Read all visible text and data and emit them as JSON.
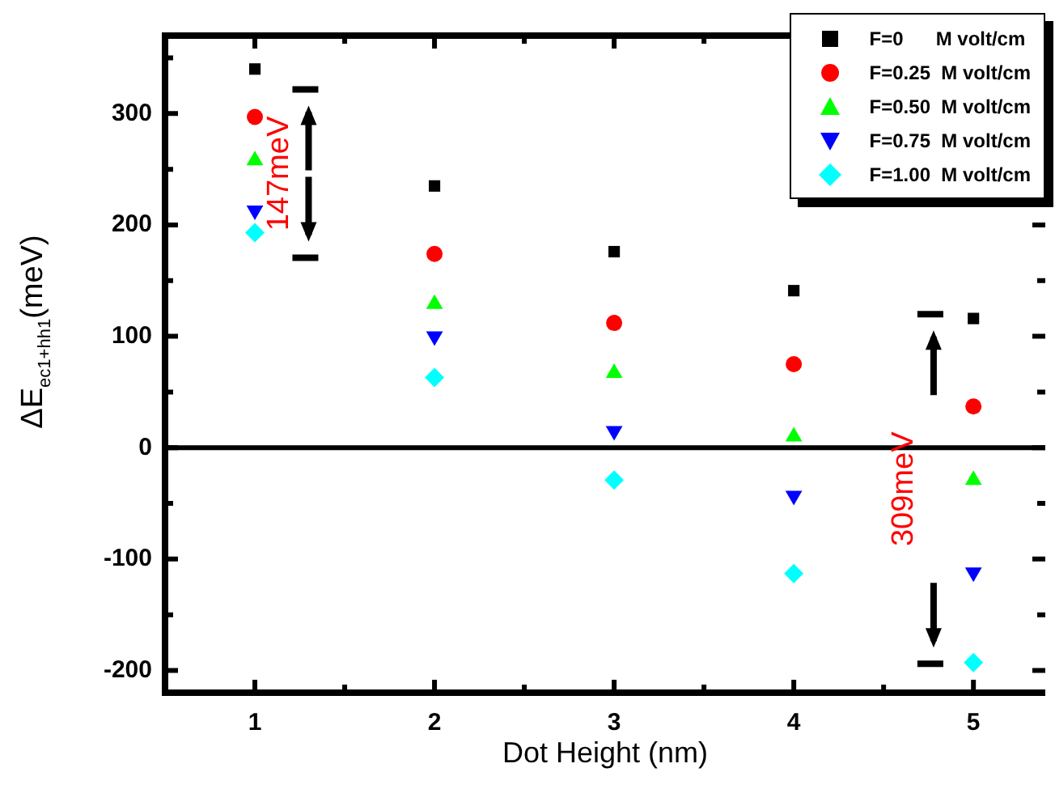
{
  "chart_data": {
    "type": "scatter",
    "xlabel": "Dot Height (nm)",
    "ylabel": "ΔE$_{ec1+hh1}$(meV)",
    "x": [
      1,
      2,
      3,
      4,
      5
    ],
    "series": [
      {
        "name": "F=0      M volt/cm",
        "color": "#000000",
        "marker": "square",
        "values": [
          340,
          235,
          176,
          141,
          116
        ]
      },
      {
        "name": "F=0.25  M volt/cm",
        "color": "#ff0000",
        "marker": "circle",
        "values": [
          297,
          174,
          112,
          75,
          37
        ]
      },
      {
        "name": "F=0.50  M volt/cm",
        "color": "#00ff00",
        "marker": "triangle",
        "values": [
          258,
          129,
          67,
          10,
          -29
        ]
      },
      {
        "name": "F=0.75  M volt/cm",
        "color": "#0000ff",
        "marker": "triangle-down",
        "values": [
          213,
          100,
          15,
          -43,
          -112
        ]
      },
      {
        "name": "F=1.00  M volt/cm",
        "color": "#00ffff",
        "marker": "diamond",
        "values": [
          193,
          63,
          -29,
          -113,
          -193
        ]
      }
    ],
    "xlim": [
      0.5,
      5.4
    ],
    "ylim": [
      -220,
      370
    ],
    "xticks": [
      1,
      {
        "value": 1.5,
        "label": null
      },
      2,
      {
        "value": 2.5,
        "label": null
      },
      3,
      {
        "value": 3.5,
        "label": null
      },
      4,
      {
        "value": 4.5,
        "label": null
      },
      5
    ],
    "yticks": [
      -200,
      {
        "value": -150,
        "label": null
      },
      -100,
      {
        "value": -50,
        "label": null
      },
      0,
      {
        "value": 50,
        "label": null
      },
      100,
      {
        "value": 150,
        "label": null
      },
      200,
      {
        "value": 250,
        "label": null
      },
      300,
      {
        "value": 350,
        "label": null
      }
    ],
    "ref_lines": [
      {
        "axis": "y",
        "value": 0,
        "color": "#000000"
      }
    ],
    "annotations": [
      "147meV",
      "309meV"
    ],
    "legend": "top right"
  }
}
